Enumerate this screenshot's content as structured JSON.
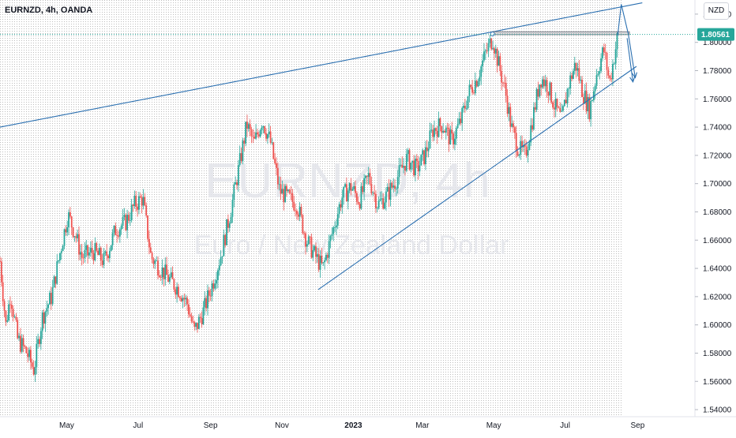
{
  "header": {
    "symbol_line": "EURNZD, 4h, OANDA"
  },
  "price_scale": {
    "currency": "NZD"
  },
  "watermark": {
    "ticker": "EURNZD, 4h",
    "description": "Euro / New Zealand Dollar"
  },
  "colors": {
    "up_candle": "#26a69a",
    "down_candle": "#ef5350",
    "trendline": "#2a6fb0",
    "price_badge_bg": "#26a69a",
    "dotted_bg": "#bdbdbd"
  },
  "chart_data": {
    "type": "candlestick",
    "symbol": "EURNZD",
    "timeframe": "4h",
    "broker": "OANDA",
    "current_price": 1.80561,
    "current_price_label": "1.80561",
    "ylim": [
      1.535,
      1.83
    ],
    "y_ticks": [
      1.82,
      1.8,
      1.78,
      1.76,
      1.74,
      1.72,
      1.7,
      1.68,
      1.66,
      1.64,
      1.62,
      1.6,
      1.58,
      1.56,
      1.54
    ],
    "y_tick_labels": [
      "1.82000",
      "1.80000",
      "1.78000",
      "1.76000",
      "1.74000",
      "1.72000",
      "1.70000",
      "1.68000",
      "1.66000",
      "1.64000",
      "1.62000",
      "1.60000",
      "1.58000",
      "1.56000",
      "1.54000"
    ],
    "x_ticks": [
      "May",
      "Jul",
      "Sep",
      "Nov",
      "2023",
      "Mar",
      "May",
      "Jul",
      "Sep"
    ],
    "x_tick_dates": [
      "2022-05-01",
      "2022-07-01",
      "2022-09-01",
      "2022-11-01",
      "2023-01-01",
      "2023-03-01",
      "2023-05-01",
      "2023-07-01",
      "2023-09-01"
    ],
    "x_range": [
      "2022-03-05",
      "2023-10-20"
    ],
    "price_path": [
      [
        "2022-03-05",
        1.645
      ],
      [
        "2022-03-10",
        1.6
      ],
      [
        "2022-03-14",
        1.622
      ],
      [
        "2022-03-20",
        1.59
      ],
      [
        "2022-03-28",
        1.58
      ],
      [
        "2022-04-03",
        1.568
      ],
      [
        "2022-04-10",
        1.605
      ],
      [
        "2022-04-18",
        1.62
      ],
      [
        "2022-04-25",
        1.65
      ],
      [
        "2022-05-02",
        1.678
      ],
      [
        "2022-05-08",
        1.665
      ],
      [
        "2022-05-14",
        1.648
      ],
      [
        "2022-05-24",
        1.652
      ],
      [
        "2022-06-02",
        1.645
      ],
      [
        "2022-06-12",
        1.668
      ],
      [
        "2022-06-20",
        1.672
      ],
      [
        "2022-06-28",
        1.685
      ],
      [
        "2022-07-05",
        1.69
      ],
      [
        "2022-07-12",
        1.648
      ],
      [
        "2022-07-20",
        1.64
      ],
      [
        "2022-07-28",
        1.632
      ],
      [
        "2022-08-05",
        1.625
      ],
      [
        "2022-08-12",
        1.615
      ],
      [
        "2022-08-18",
        1.595
      ],
      [
        "2022-08-26",
        1.61
      ],
      [
        "2022-09-03",
        1.63
      ],
      [
        "2022-09-10",
        1.65
      ],
      [
        "2022-09-18",
        1.68
      ],
      [
        "2022-09-26",
        1.715
      ],
      [
        "2022-10-02",
        1.742
      ],
      [
        "2022-10-08",
        1.728
      ],
      [
        "2022-10-15",
        1.745
      ],
      [
        "2022-10-22",
        1.73
      ],
      [
        "2022-10-30",
        1.695
      ],
      [
        "2022-11-06",
        1.69
      ],
      [
        "2022-11-14",
        1.685
      ],
      [
        "2022-11-22",
        1.66
      ],
      [
        "2022-11-30",
        1.648
      ],
      [
        "2022-12-06",
        1.64
      ],
      [
        "2022-12-14",
        1.665
      ],
      [
        "2022-12-22",
        1.69
      ],
      [
        "2022-12-30",
        1.698
      ],
      [
        "2023-01-06",
        1.688
      ],
      [
        "2023-01-14",
        1.705
      ],
      [
        "2023-01-22",
        1.685
      ],
      [
        "2023-01-30",
        1.692
      ],
      [
        "2023-02-08",
        1.705
      ],
      [
        "2023-02-16",
        1.718
      ],
      [
        "2023-02-24",
        1.71
      ],
      [
        "2023-03-03",
        1.72
      ],
      [
        "2023-03-10",
        1.738
      ],
      [
        "2023-03-18",
        1.742
      ],
      [
        "2023-03-26",
        1.73
      ],
      [
        "2023-04-03",
        1.745
      ],
      [
        "2023-04-10",
        1.765
      ],
      [
        "2023-04-17",
        1.775
      ],
      [
        "2023-04-24",
        1.792
      ],
      [
        "2023-04-30",
        1.803
      ],
      [
        "2023-05-05",
        1.785
      ],
      [
        "2023-05-11",
        1.765
      ],
      [
        "2023-05-16",
        1.74
      ],
      [
        "2023-05-22",
        1.725
      ],
      [
        "2023-05-28",
        1.72
      ],
      [
        "2023-06-03",
        1.745
      ],
      [
        "2023-06-10",
        1.775
      ],
      [
        "2023-06-16",
        1.77
      ],
      [
        "2023-06-22",
        1.755
      ],
      [
        "2023-06-28",
        1.745
      ],
      [
        "2023-07-04",
        1.77
      ],
      [
        "2023-07-10",
        1.785
      ],
      [
        "2023-07-16",
        1.765
      ],
      [
        "2023-07-22",
        1.752
      ],
      [
        "2023-07-28",
        1.778
      ],
      [
        "2023-08-03",
        1.795
      ],
      [
        "2023-08-08",
        1.772
      ],
      [
        "2023-08-12",
        1.79
      ],
      [
        "2023-08-15",
        1.805
      ]
    ],
    "annotations": [
      {
        "type": "trendline",
        "label": "upper",
        "from": [
          "2022-03-05",
          1.74
        ],
        "to": [
          "2023-09-05",
          1.828
        ]
      },
      {
        "type": "trendline",
        "label": "lower",
        "from": [
          "2022-12-02",
          1.625
        ],
        "to": [
          "2023-08-31",
          1.783
        ]
      },
      {
        "type": "box",
        "label": "resistance",
        "from": [
          "2023-04-30",
          1.8055
        ],
        "to": [
          "2023-08-25",
          1.8075
        ]
      },
      {
        "type": "projection_path",
        "points": [
          [
            "2023-08-15",
            1.805
          ],
          [
            "2023-08-18",
            1.827
          ],
          [
            "2023-08-24",
            1.806
          ],
          [
            "2023-08-30",
            1.775
          ]
        ]
      },
      {
        "type": "projection_path",
        "points": [
          [
            "2023-08-23",
            1.803
          ],
          [
            "2023-08-28",
            1.772
          ]
        ]
      },
      {
        "type": "marker",
        "label": "pivot",
        "at": [
          "2023-04-30",
          1.806
        ]
      }
    ]
  }
}
